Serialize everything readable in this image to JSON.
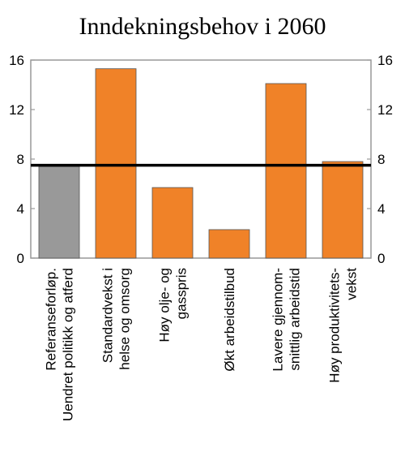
{
  "chart_data": {
    "type": "bar",
    "title": "Inndekningsbehov i 2060",
    "categories": [
      [
        "Referanseforløp.",
        "Uendret politikk og atferd"
      ],
      [
        "Standardvekst i",
        "helse og omsorg"
      ],
      [
        "Høy olje- og",
        "gasspris"
      ],
      [
        "Økt arbeidstilbud"
      ],
      [
        "Lavere gjennom-",
        "snittlig arbeidstid"
      ],
      [
        "Høy produktivitets-",
        "vekst"
      ]
    ],
    "values": [
      7.4,
      15.3,
      5.7,
      2.3,
      14.1,
      7.8
    ],
    "bar_colors": [
      "#999999",
      "#f08228",
      "#f08228",
      "#f08228",
      "#f08228",
      "#f08228"
    ],
    "reference_line": 7.5,
    "reference_line_color": "#000000",
    "ylim": [
      0,
      16
    ],
    "yticks": [
      0,
      4,
      8,
      12,
      16
    ],
    "left_axis_ticks": [
      "0",
      "4",
      "8",
      "12",
      "16"
    ],
    "right_axis_ticks": [
      "0",
      "4",
      "8",
      "12",
      "16"
    ],
    "xlabel": "",
    "ylabel": "",
    "grid": false
  }
}
